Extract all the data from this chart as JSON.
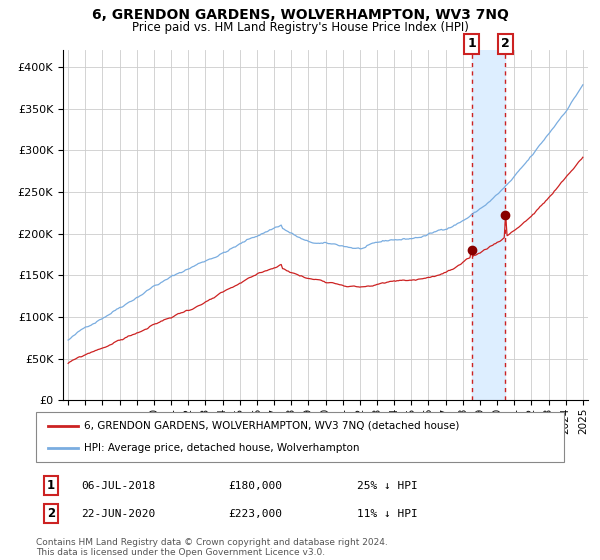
{
  "title": "6, GRENDON GARDENS, WOLVERHAMPTON, WV3 7NQ",
  "subtitle": "Price paid vs. HM Land Registry's House Price Index (HPI)",
  "legend_line1": "6, GRENDON GARDENS, WOLVERHAMPTON, WV3 7NQ (detached house)",
  "legend_line2": "HPI: Average price, detached house, Wolverhampton",
  "annotation1_label": "1",
  "annotation1_date": "06-JUL-2018",
  "annotation1_price": "£180,000",
  "annotation1_hpi": "25% ↓ HPI",
  "annotation2_label": "2",
  "annotation2_date": "22-JUN-2020",
  "annotation2_price": "£223,000",
  "annotation2_hpi": "11% ↓ HPI",
  "footnote": "Contains HM Land Registry data © Crown copyright and database right 2024.\nThis data is licensed under the Open Government Licence v3.0.",
  "hpi_color": "#7aade0",
  "price_color": "#cc2222",
  "marker_color": "#880000",
  "vline_color": "#cc2222",
  "highlight_color": "#ddeeff",
  "background_color": "#ffffff",
  "grid_color": "#cccccc",
  "ylim": [
    0,
    420000
  ],
  "yticks": [
    0,
    50000,
    100000,
    150000,
    200000,
    250000,
    300000,
    350000,
    400000
  ],
  "year_start": 1995,
  "year_end": 2025,
  "sale1_year": 2018.51,
  "sale1_price": 180000,
  "sale2_year": 2020.47,
  "sale2_price": 223000
}
